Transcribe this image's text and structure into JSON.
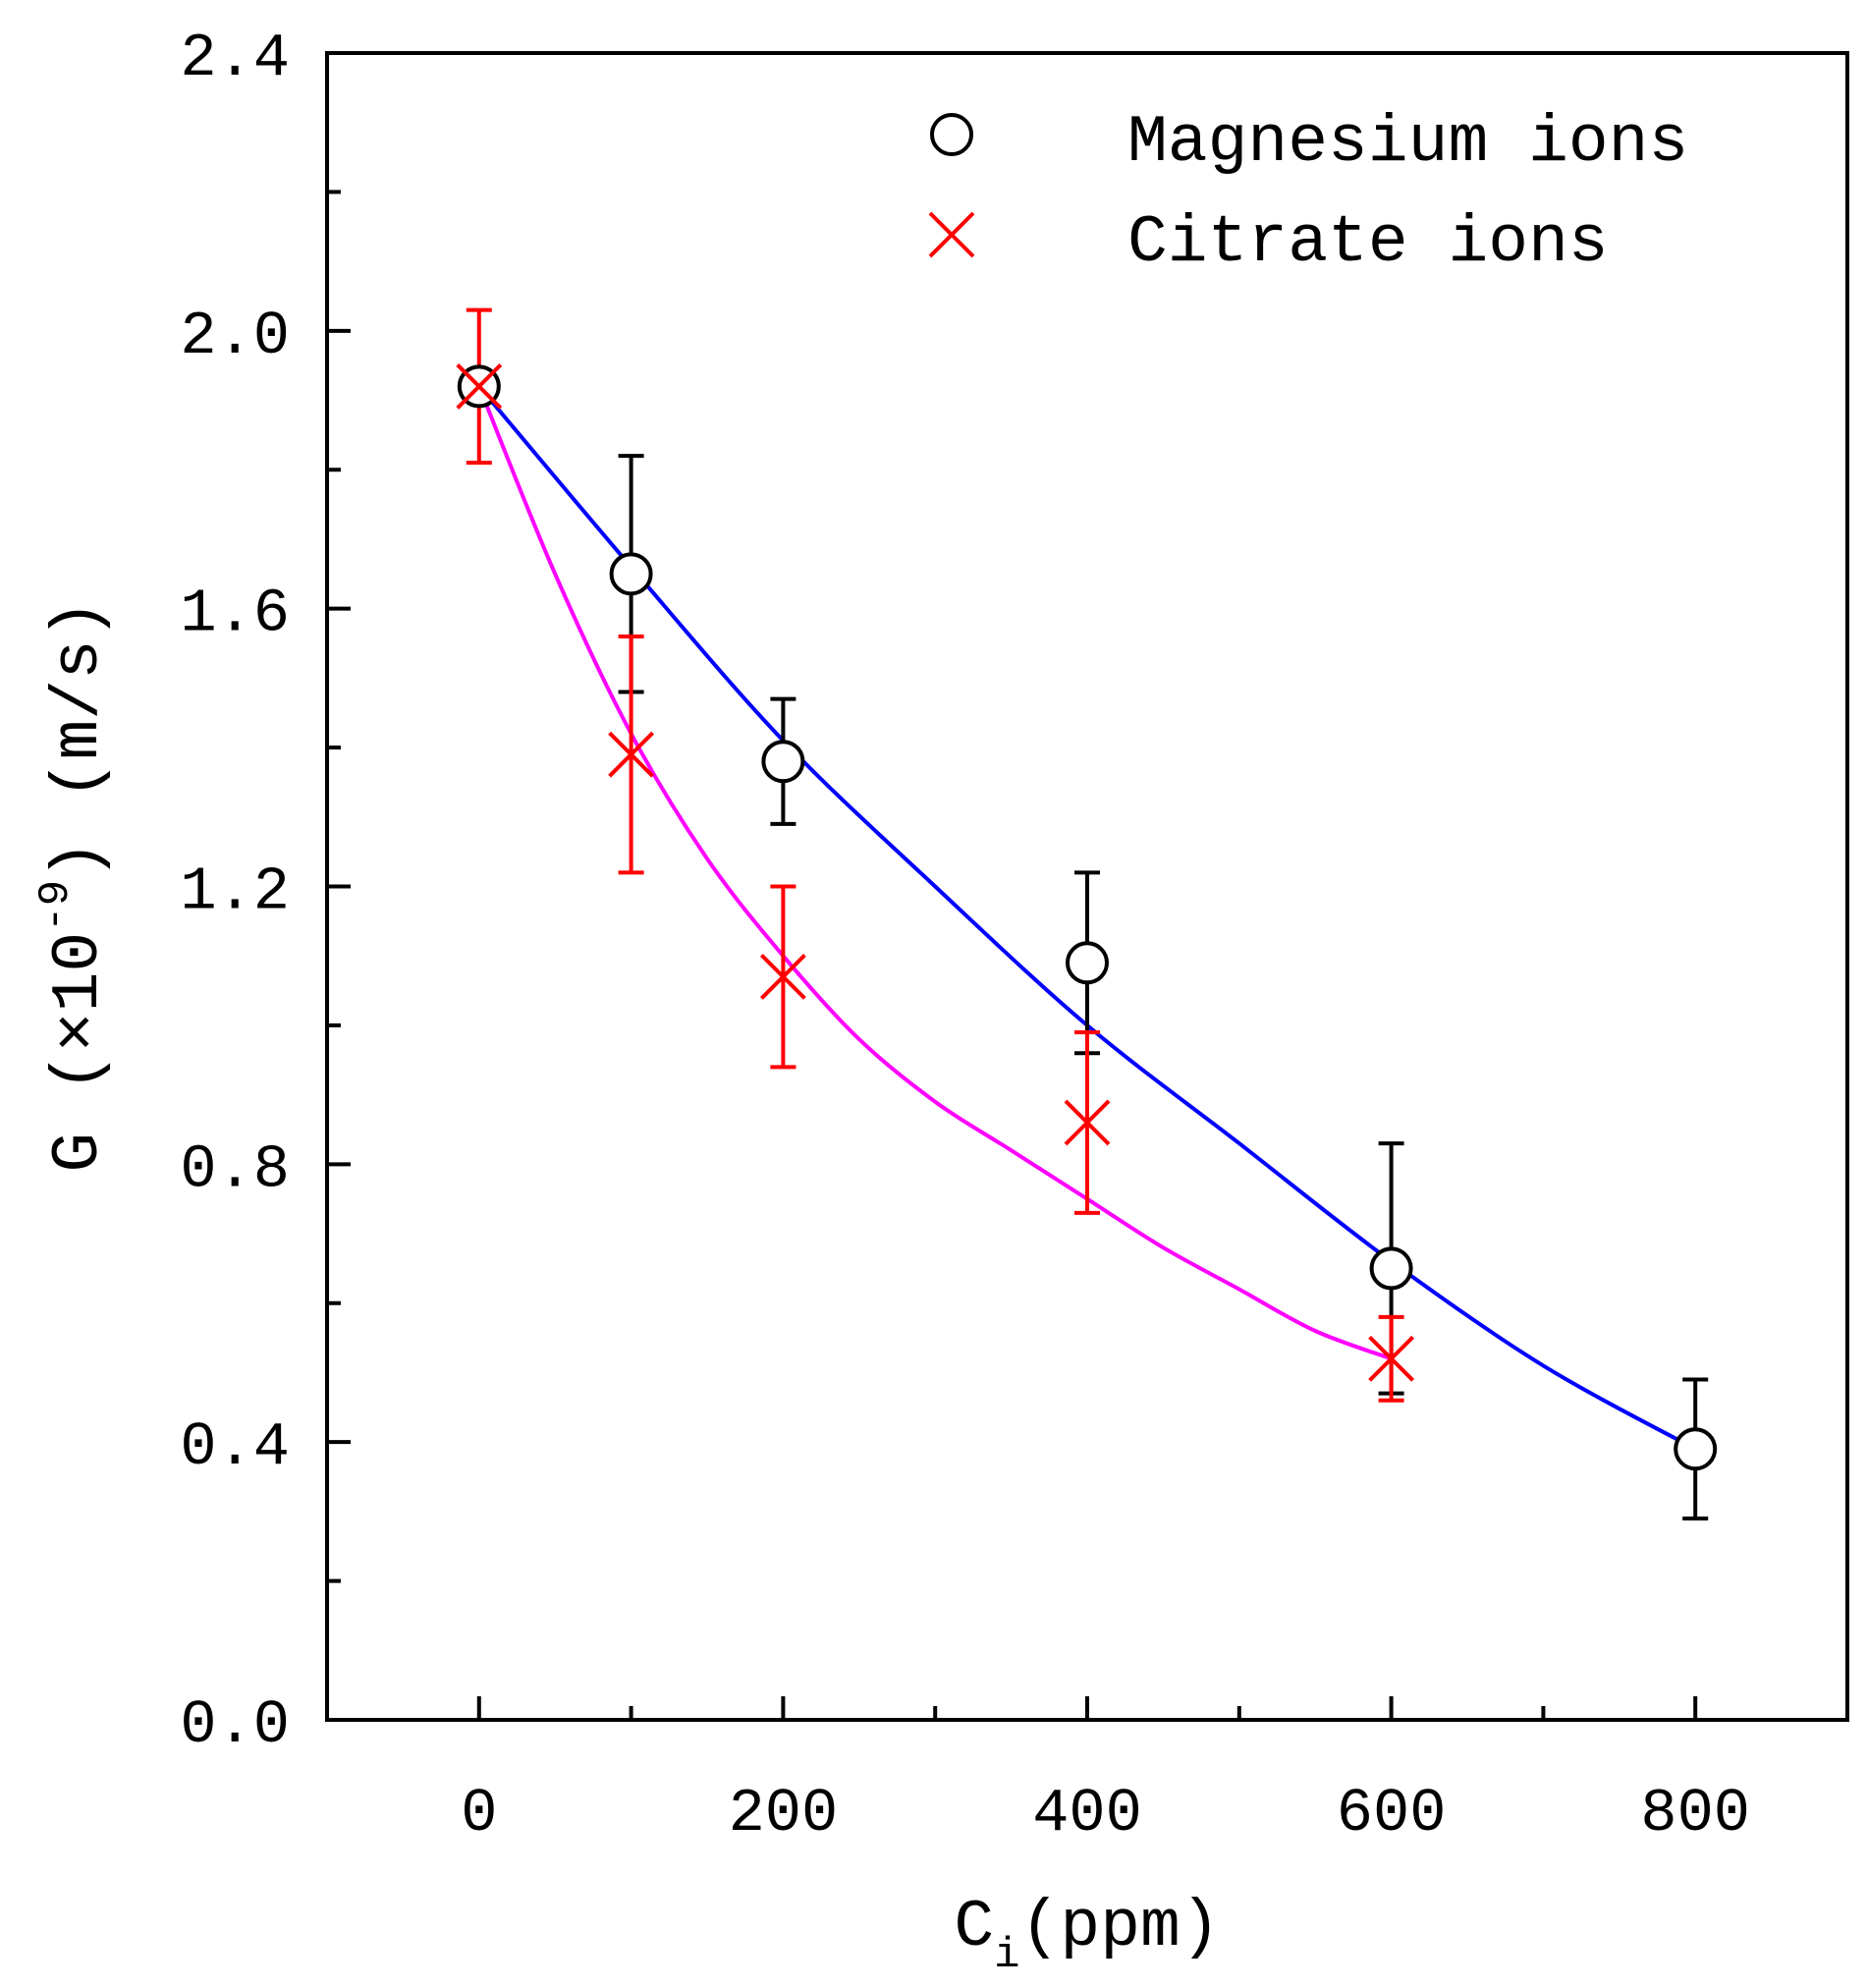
{
  "chart_data": {
    "type": "scatter",
    "title": "",
    "xlabel": {
      "main": "C",
      "sub": "i",
      "unit": "(ppm)"
    },
    "ylabel": {
      "main": "G",
      "factor_prefix": "(×10",
      "exponent": "-9",
      "factor_suffix": ")",
      "unit": "(m/s)"
    },
    "xlim": [
      -100,
      900
    ],
    "ylim": [
      0,
      2.4
    ],
    "x_ticks": [
      0,
      200,
      400,
      600,
      800
    ],
    "x_tick_labels": [
      "0",
      "200",
      "400",
      "600",
      "800"
    ],
    "y_ticks": [
      0,
      0.4,
      0.8,
      1.2,
      1.6,
      2.0,
      2.4
    ],
    "y_tick_labels": [
      "0.0",
      "0.4",
      "0.8",
      "1.2",
      "1.6",
      "2.0",
      "2.4"
    ],
    "grid": false,
    "legend_position": "top-right",
    "series": [
      {
        "name": "Magnesium ions",
        "marker": "circle",
        "marker_color": "#000000",
        "line_color": "#0000ff",
        "x": [
          0,
          100,
          200,
          400,
          600,
          800
        ],
        "y": [
          1.92,
          1.65,
          1.38,
          1.09,
          0.65,
          0.39
        ],
        "err": [
          0,
          0.17,
          0.09,
          0.13,
          0.18,
          0.1
        ],
        "fit": {
          "x": [
            0,
            100,
            200,
            300,
            400,
            500,
            600,
            700,
            800
          ],
          "y": [
            1.92,
            1.66,
            1.41,
            1.2,
            1.0,
            0.83,
            0.66,
            0.51,
            0.39
          ]
        }
      },
      {
        "name": "Citrate ions",
        "marker": "x",
        "marker_color": "#ff0000",
        "line_color": "#ff00ff",
        "x": [
          0,
          100,
          200,
          400,
          600
        ],
        "y": [
          1.92,
          1.39,
          1.07,
          0.86,
          0.52
        ],
        "err": [
          0.11,
          0.17,
          0.13,
          0.13,
          0.06
        ],
        "fit": {
          "x": [
            0,
            50,
            100,
            150,
            200,
            250,
            300,
            350,
            400,
            450,
            500,
            550,
            600
          ],
          "y": [
            1.92,
            1.65,
            1.42,
            1.24,
            1.1,
            0.98,
            0.89,
            0.82,
            0.75,
            0.68,
            0.62,
            0.56,
            0.52
          ]
        }
      }
    ]
  }
}
